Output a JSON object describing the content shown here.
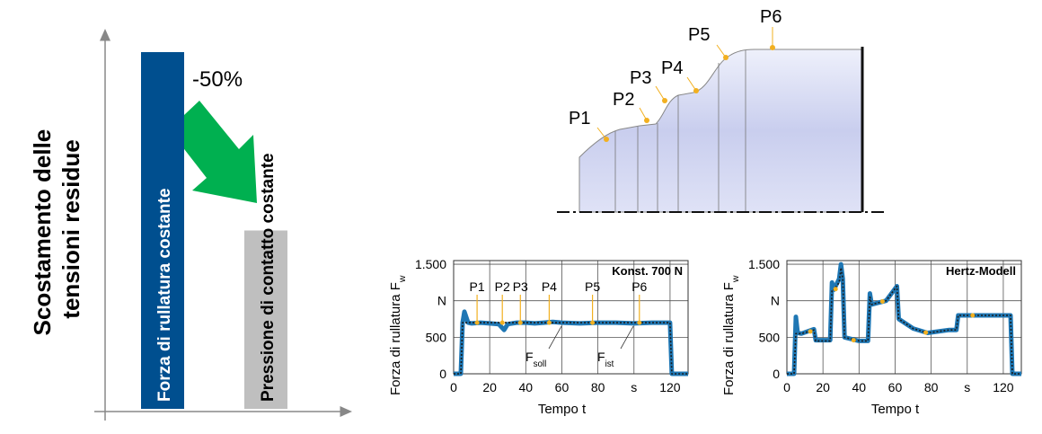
{
  "bar_chart": {
    "y_label": [
      "Scostamento delle",
      "tensioni residue"
    ],
    "arrow_label": "-50%",
    "bars": [
      {
        "label": "Forza di rullatura costante",
        "value": 100,
        "color": "#004f8f"
      },
      {
        "label": "Pressione di contatto costante",
        "value": 50,
        "color": "#bfbfbf"
      }
    ]
  },
  "diagram": {
    "points": [
      "P1",
      "P2",
      "P3",
      "P4",
      "P5",
      "P6"
    ]
  },
  "charts": [
    {
      "type": "line",
      "y_label": {
        "text": "Forza di rullatura F",
        "sub": "w"
      },
      "x_label": "Tempo t",
      "box_label": "Konst. 700 N",
      "xlim": [
        0,
        130
      ],
      "ylim": [
        0,
        1550
      ],
      "xticks": [
        0,
        20,
        40,
        60,
        80,
        {
          "value": 100,
          "label": "s"
        },
        120
      ],
      "yticks": [
        0,
        500,
        {
          "value": 1000,
          "label": "N"
        },
        {
          "value": 1500,
          "label": "1.500"
        }
      ],
      "grid": true,
      "x": [
        0,
        4,
        5,
        6,
        8,
        10,
        15,
        20,
        25,
        28,
        30,
        35,
        40,
        45,
        50,
        55,
        60,
        70,
        80,
        90,
        100,
        110,
        120,
        121,
        125,
        130
      ],
      "series": [
        {
          "name": {
            "text": "F",
            "sub": "ist"
          },
          "color": "#1f77b4",
          "values": [
            0,
            0,
            700,
            850,
            700,
            690,
            700,
            690,
            680,
            600,
            680,
            700,
            700,
            690,
            700,
            710,
            700,
            690,
            700,
            700,
            690,
            700,
            700,
            0,
            0,
            0
          ]
        },
        {
          "name": {
            "text": "F",
            "sub": "soll"
          },
          "color": "#1a1a1a",
          "values": [
            0,
            0,
            700,
            700,
            700,
            700,
            700,
            700,
            700,
            700,
            700,
            700,
            700,
            700,
            700,
            700,
            700,
            700,
            700,
            700,
            700,
            700,
            700,
            0,
            0,
            0
          ]
        }
      ],
      "markers": [
        {
          "label": "P1",
          "x": 13,
          "y": 700
        },
        {
          "label": "P2",
          "x": 27,
          "y": 700
        },
        {
          "label": "P3",
          "x": 37,
          "y": 700
        },
        {
          "label": "P4",
          "x": 53,
          "y": 700
        },
        {
          "label": "P5",
          "x": 77,
          "y": 700
        },
        {
          "label": "P6",
          "x": 103,
          "y": 700
        }
      ]
    },
    {
      "type": "line",
      "y_label": {
        "text": "Forza di rullatura F",
        "sub": "w"
      },
      "x_label": "Tempo t",
      "box_label": "Hertz-Modell",
      "xlim": [
        0,
        130
      ],
      "ylim": [
        0,
        1550
      ],
      "xticks": [
        0,
        20,
        40,
        60,
        80,
        {
          "value": 100,
          "label": "s"
        },
        120
      ],
      "yticks": [
        0,
        500,
        {
          "value": 1000,
          "label": "N"
        },
        {
          "value": 1500,
          "label": "1.500"
        }
      ],
      "grid": true,
      "x": [
        0,
        4,
        5,
        6,
        8,
        15,
        16,
        24,
        25,
        26,
        29,
        30,
        31,
        32,
        40,
        45,
        46,
        47,
        55,
        61,
        62,
        70,
        78,
        90,
        94,
        95,
        124,
        125,
        130
      ],
      "series": [
        {
          "color": "#1f77b4",
          "values": [
            0,
            0,
            780,
            560,
            550,
            610,
            460,
            460,
            1250,
            1150,
            1300,
            1500,
            1300,
            500,
            450,
            450,
            1100,
            950,
            1000,
            1200,
            750,
            620,
            560,
            600,
            600,
            800,
            800,
            0,
            0
          ]
        },
        {
          "color": "#1a1a1a",
          "values": [
            0,
            0,
            550,
            550,
            550,
            600,
            450,
            450,
            1150,
            1150,
            1250,
            1450,
            1300,
            500,
            450,
            450,
            1050,
            950,
            1000,
            1200,
            750,
            620,
            560,
            600,
            600,
            800,
            800,
            0,
            0
          ]
        }
      ],
      "markers": [
        {
          "x": 13,
          "y": 580
        },
        {
          "x": 27,
          "y": 1160
        },
        {
          "x": 37,
          "y": 460
        },
        {
          "x": 53,
          "y": 990
        },
        {
          "x": 77,
          "y": 565
        },
        {
          "x": 103,
          "y": 800
        }
      ]
    }
  ]
}
